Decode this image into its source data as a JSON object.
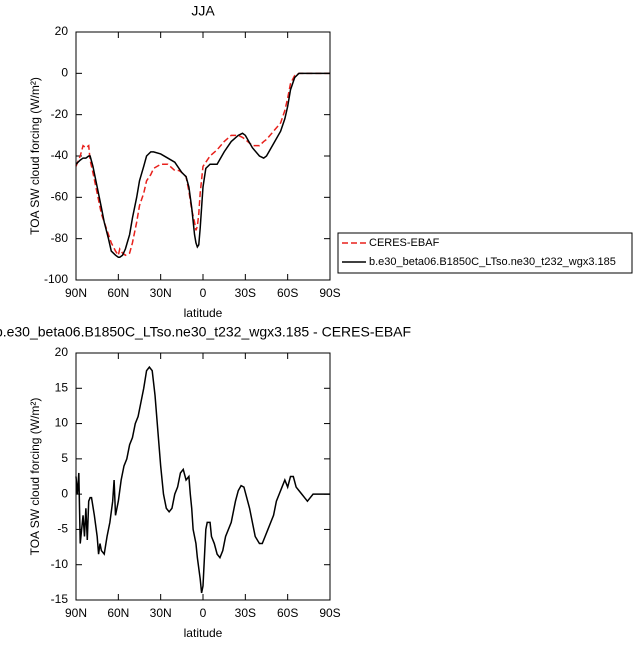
{
  "chart_data": [
    {
      "type": "line",
      "title": "JJA",
      "xlabel": "latitude",
      "ylabel": "TOA SW cloud forcing (W/m²)",
      "x": [
        90,
        87,
        85,
        83,
        81,
        80,
        78,
        75,
        72,
        70,
        67,
        65,
        62,
        60,
        59,
        57,
        55,
        52,
        50,
        47,
        45,
        42,
        40,
        37,
        35,
        30,
        25,
        20,
        17,
        15,
        12,
        10,
        8,
        6,
        5,
        4,
        3,
        2,
        0,
        -2,
        -5,
        -10,
        -15,
        -20,
        -25,
        -28,
        -30,
        -35,
        -40,
        -43,
        -45,
        -50,
        -55,
        -58,
        -60,
        -62,
        -65,
        -68,
        -70,
        -75,
        -80,
        -90
      ],
      "series": [
        {
          "name": "CERES-EBAF",
          "color": "#e8211c",
          "line_style": "dashed",
          "values": [
            -45,
            -40,
            -35,
            -36,
            -35,
            -42,
            -48,
            -58,
            -68,
            -72,
            -78,
            -82,
            -86,
            -88,
            -85,
            -87,
            -88,
            -87,
            -82,
            -72,
            -64,
            -58,
            -52,
            -49,
            -46,
            -44,
            -44,
            -47,
            -47,
            -48,
            -50,
            -57,
            -66,
            -72,
            -76,
            -74,
            -68,
            -58,
            -45,
            -43,
            -40,
            -37,
            -33,
            -30,
            -30,
            -31,
            -32,
            -35,
            -35,
            -33,
            -32,
            -28,
            -24,
            -18,
            -12,
            -5,
            -1,
            0,
            0,
            0,
            0,
            0
          ]
        },
        {
          "name": "b.e30_beta06.B1850C_LTso.ne30_t232_wgx3.185",
          "color": "#000000",
          "line_style": "solid",
          "values": [
            -44,
            -42,
            -41,
            -41,
            -40,
            -40,
            -45,
            -55,
            -65,
            -72,
            -80,
            -86,
            -88,
            -89,
            -89,
            -88,
            -85,
            -78,
            -70,
            -60,
            -52,
            -45,
            -40,
            -38,
            -38,
            -39,
            -41,
            -43,
            -46,
            -48,
            -50,
            -55,
            -65,
            -78,
            -82,
            -84,
            -83,
            -75,
            -55,
            -46,
            -44,
            -44,
            -38,
            -33,
            -30,
            -29,
            -30,
            -36,
            -40,
            -41,
            -40,
            -34,
            -28,
            -22,
            -16,
            -8,
            -2,
            0,
            0,
            0,
            0,
            0
          ]
        }
      ],
      "xlim": [
        90,
        -90
      ],
      "xticks": [
        {
          "value": 90,
          "label": "90N"
        },
        {
          "value": 60,
          "label": "60N"
        },
        {
          "value": 30,
          "label": "30N"
        },
        0,
        {
          "value": -30,
          "label": "30S"
        },
        {
          "value": -60,
          "label": "60S"
        },
        {
          "value": -90,
          "label": "90S"
        }
      ],
      "ylim": [
        -100,
        20
      ],
      "yticks": [
        -100,
        -80,
        -60,
        -40,
        -20,
        0,
        20
      ],
      "legend": "outside right"
    },
    {
      "type": "line",
      "title": "b.e30_beta06.B1850C_LTso.ne30_t232_wgx3.185 - CERES-EBAF",
      "xlabel": "latitude",
      "ylabel": "TOA SW cloud forcing (W/m²)",
      "x": [
        90,
        89,
        88,
        87,
        86,
        85,
        84,
        83,
        82,
        81,
        80,
        79,
        77,
        75,
        74,
        73,
        72,
        70,
        68,
        66,
        64,
        63,
        62,
        60,
        58,
        56,
        54,
        52,
        50,
        48,
        46,
        44,
        42,
        40,
        38,
        36,
        34,
        32,
        30,
        28,
        26,
        24,
        22,
        20,
        18,
        16,
        14,
        12,
        10,
        9,
        8,
        7,
        5,
        4,
        2,
        1,
        0,
        -1,
        -2,
        -3,
        -5,
        -6,
        -8,
        -10,
        -12,
        -14,
        -16,
        -20,
        -23,
        -25,
        -27,
        -29,
        -31,
        -33,
        -35,
        -37,
        -40,
        -42,
        -44,
        -46,
        -48,
        -50,
        -52,
        -54,
        -56,
        -58,
        -60,
        -62,
        -64,
        -66,
        -68,
        -70,
        -72,
        -74,
        -76,
        -78,
        -80,
        -85,
        -90
      ],
      "series": [
        {
          "name": null,
          "color": "#000000",
          "line_style": "solid",
          "values": [
            2.5,
            0,
            3,
            -7,
            -5,
            -3,
            -6,
            -2,
            -6.5,
            -1,
            -0.5,
            -0.5,
            -3,
            -6,
            -8.5,
            -7,
            -8,
            -8.5,
            -6,
            -4,
            -1,
            2,
            -3,
            -1,
            2,
            4,
            5,
            7,
            8,
            10,
            11,
            13,
            15,
            17.5,
            18,
            17.5,
            14,
            9,
            4,
            0,
            -2,
            -2.5,
            -2,
            0,
            1,
            3,
            3.5,
            2,
            2.5,
            0,
            -2,
            -5,
            -7,
            -9,
            -12,
            -14,
            -13,
            -9,
            -5,
            -4,
            -4,
            -6,
            -7,
            -8.5,
            -9,
            -8,
            -6,
            -4,
            -1,
            0.5,
            1.2,
            1,
            -0.5,
            -2,
            -4,
            -6,
            -7,
            -7,
            -6,
            -5,
            -4,
            -3,
            -1,
            0,
            1,
            2,
            1,
            2.5,
            2.5,
            1,
            0.5,
            0,
            -0.5,
            -1,
            -0.5,
            0,
            0,
            0,
            0
          ]
        }
      ],
      "xlim": [
        90,
        -90
      ],
      "xticks": [
        {
          "value": 90,
          "label": "90N"
        },
        {
          "value": 60,
          "label": "60N"
        },
        {
          "value": 30,
          "label": "30N"
        },
        0,
        {
          "value": -30,
          "label": "30S"
        },
        {
          "value": -60,
          "label": "60S"
        },
        {
          "value": -90,
          "label": "90S"
        }
      ],
      "ylim": [
        -15,
        20
      ],
      "yticks": [
        -15,
        -10,
        -5,
        0,
        5,
        10,
        15,
        20
      ]
    }
  ]
}
